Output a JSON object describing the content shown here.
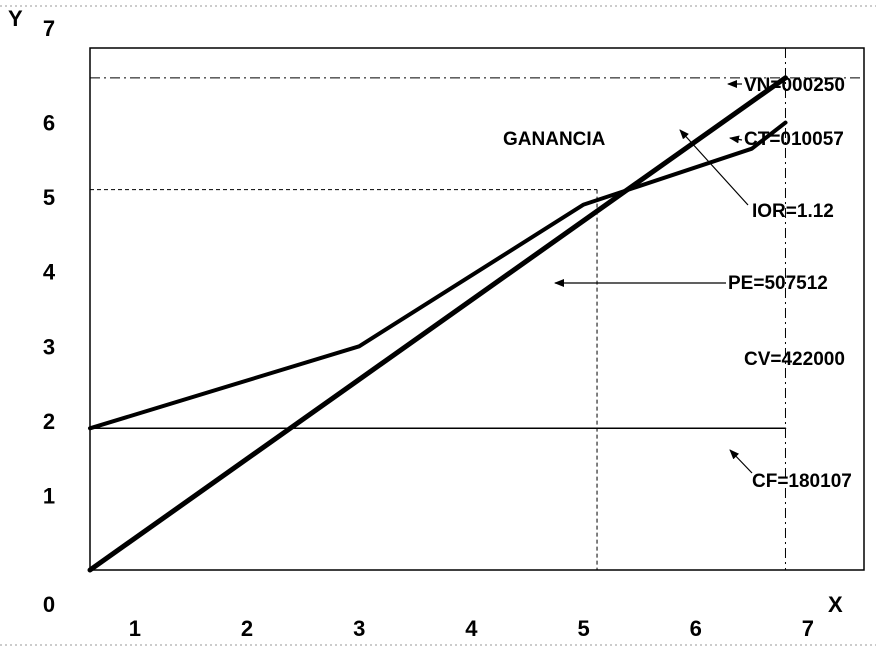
{
  "chart_data": {
    "type": "line",
    "title": "",
    "xlabel": "X",
    "ylabel": "Y",
    "xlim": [
      0.6,
      7.5
    ],
    "ylim": [
      0,
      7
    ],
    "x_ticks": [
      "1",
      "2",
      "3",
      "4",
      "5",
      "6",
      "7"
    ],
    "y_ticks": [
      "0",
      "1",
      "2",
      "3",
      "4",
      "5",
      "6",
      "7"
    ],
    "series": [
      {
        "values": [
          [
            0.6,
            0.0
          ],
          [
            6.8,
            6.6
          ]
        ]
      },
      {
        "values": [
          [
            0.6,
            1.9
          ],
          [
            3.0,
            3.0
          ],
          [
            5.0,
            4.9
          ],
          [
            6.5,
            5.65
          ],
          [
            6.8,
            6.0
          ]
        ]
      },
      {
        "values": [
          [
            0.6,
            1.9
          ],
          [
            6.8,
            1.9
          ]
        ]
      }
    ],
    "reference_lines": {
      "vn_level": 6.6,
      "pe_level": 5.1,
      "pe_x": 5.12,
      "max_x": 6.8
    },
    "annotations": [
      {
        "text": "GANANCIA"
      },
      {
        "text": "VN=000250"
      },
      {
        "text": "CT=010057"
      },
      {
        "text": "IOR=1.12"
      },
      {
        "text": "PE=507512"
      },
      {
        "text": "CV=422000"
      },
      {
        "text": "CF=180107"
      }
    ],
    "grid": false,
    "legend": "none"
  }
}
